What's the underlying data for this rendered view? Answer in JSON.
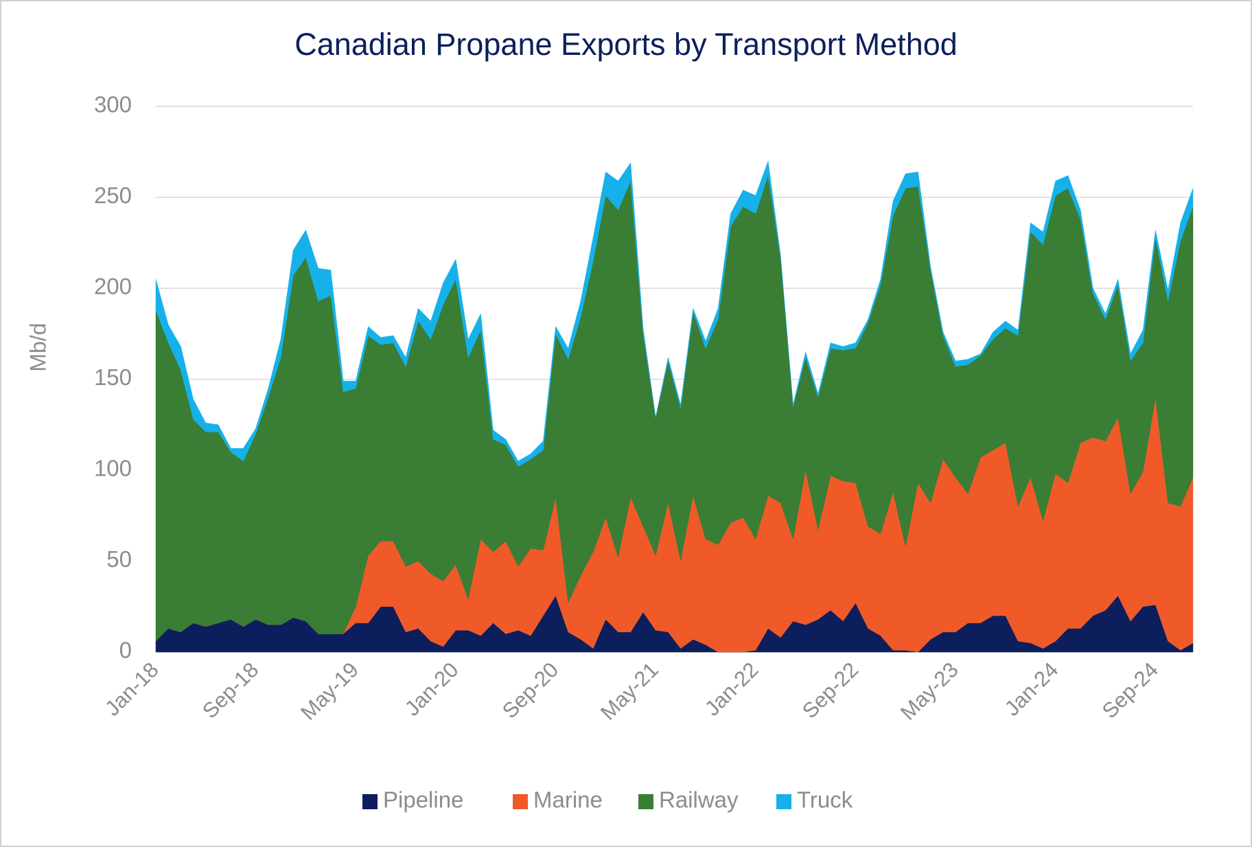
{
  "chart_data": {
    "type": "stacked_area",
    "title": "Canadian Propane Exports by Transport Method",
    "y_label": "Mb/d",
    "categories": [
      "Jan-18",
      null,
      null,
      null,
      null,
      null,
      null,
      null,
      "Sep-18",
      null,
      null,
      null,
      null,
      null,
      null,
      null,
      "May-19",
      null,
      null,
      null,
      null,
      null,
      null,
      null,
      "Jan-20",
      null,
      null,
      null,
      null,
      null,
      null,
      null,
      "Sep-20",
      null,
      null,
      null,
      null,
      null,
      null,
      null,
      "May-21",
      null,
      null,
      null,
      null,
      null,
      null,
      null,
      "Jan-22",
      null,
      null,
      null,
      null,
      null,
      null,
      null,
      "Sep-22",
      null,
      null,
      null,
      null,
      null,
      null,
      null,
      "May-23",
      null,
      null,
      null,
      null,
      null,
      null,
      null,
      "Jan-24",
      null,
      null,
      null,
      null,
      null,
      null,
      null,
      "Sep-24",
      null,
      null,
      null
    ],
    "series": [
      {
        "name": "Pipeline",
        "color": "#0c1f5c",
        "values": [
          6,
          13,
          11,
          16,
          14,
          16,
          18,
          14,
          18,
          15,
          15,
          19,
          17,
          10,
          10,
          10,
          16,
          16,
          25,
          25,
          11,
          13,
          6,
          3,
          12,
          12,
          9,
          16,
          10,
          12,
          9,
          20,
          31,
          11,
          7,
          2,
          18,
          11,
          11,
          22,
          12,
          11,
          2,
          7,
          4,
          0,
          0,
          0,
          1,
          13,
          8,
          17,
          15,
          18,
          23,
          17,
          27,
          13,
          9,
          1,
          1,
          0,
          7,
          11,
          11,
          16,
          16,
          20,
          20,
          6,
          5,
          2,
          6,
          13,
          13,
          20,
          23,
          31,
          17,
          25,
          26,
          6,
          1,
          5
        ]
      },
      {
        "name": "Marine",
        "color": "#f05a28",
        "values": [
          0,
          0,
          0,
          0,
          0,
          0,
          0,
          0,
          0,
          0,
          0,
          0,
          0,
          0,
          0,
          0,
          9,
          37,
          36,
          36,
          36,
          37,
          37,
          36,
          36,
          17,
          53,
          39,
          51,
          35,
          48,
          36,
          54,
          16,
          35,
          53,
          56,
          41,
          74,
          47,
          41,
          71,
          48,
          79,
          58,
          59,
          71,
          74,
          61,
          73,
          74,
          45,
          85,
          49,
          74,
          77,
          66,
          56,
          56,
          87,
          57,
          93,
          75,
          95,
          85,
          71,
          91,
          91,
          95,
          74,
          91,
          70,
          92,
          80,
          102,
          98,
          93,
          98,
          70,
          74,
          114,
          76,
          79,
          91
        ]
      },
      {
        "name": "Railway",
        "color": "#3a7d35",
        "values": [
          182,
          157,
          144,
          112,
          107,
          105,
          92,
          91,
          102,
          125,
          147,
          188,
          200,
          183,
          186,
          133,
          120,
          121,
          108,
          109,
          110,
          132,
          129,
          152,
          157,
          133,
          115,
          62,
          53,
          55,
          49,
          55,
          90,
          134,
          142,
          160,
          177,
          191,
          174,
          106,
          76,
          78,
          84,
          101,
          105,
          124,
          163,
          171,
          179,
          176,
          135,
          73,
          62,
          73,
          70,
          72,
          74,
          112,
          137,
          152,
          197,
          163,
          128,
          68,
          61,
          71,
          56,
          61,
          63,
          94,
          135,
          152,
          153,
          162,
          123,
          79,
          67,
          73,
          73,
          71,
          88,
          111,
          146,
          149
        ]
      },
      {
        "name": "Truck",
        "color": "#16b1ea",
        "values": [
          17,
          10,
          13,
          11,
          5,
          4,
          2,
          7,
          3,
          5,
          10,
          14,
          15,
          18,
          14,
          6,
          4,
          5,
          4,
          4,
          5,
          7,
          10,
          12,
          11,
          10,
          9,
          5,
          3,
          3,
          3,
          5,
          4,
          6,
          9,
          13,
          13,
          16,
          10,
          3,
          0,
          2,
          2,
          2,
          4,
          6,
          7,
          9,
          10,
          8,
          1,
          1,
          3,
          2,
          3,
          2,
          3,
          2,
          3,
          8,
          8,
          8,
          2,
          2,
          3,
          3,
          1,
          4,
          4,
          3,
          5,
          7,
          8,
          7,
          5,
          3,
          3,
          3,
          4,
          7,
          4,
          6,
          10,
          10
        ]
      }
    ],
    "ylim": [
      0,
      300
    ],
    "yticks": [
      0,
      50,
      100,
      150,
      200,
      250,
      300
    ],
    "grid": true,
    "legend": "bottom"
  }
}
